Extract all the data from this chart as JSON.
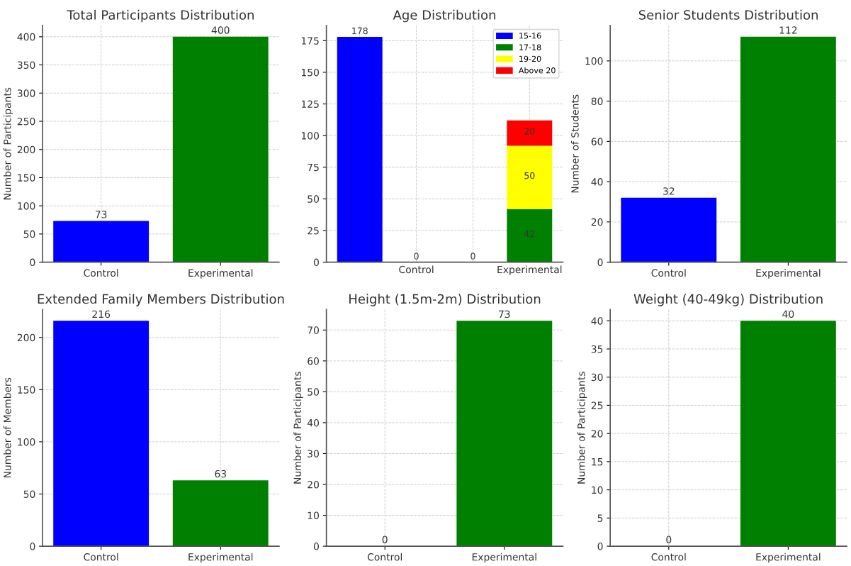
{
  "chart_data": [
    {
      "type": "bar",
      "title": "Total Participants Distribution",
      "ylabel": "Number of Participants",
      "categories": [
        "Control",
        "Experimental"
      ],
      "values": [
        73,
        400
      ],
      "colors": [
        "#0000ff",
        "#008000"
      ],
      "ylim": [
        0,
        420
      ],
      "yticks": [
        0,
        50,
        100,
        150,
        200,
        250,
        300,
        350,
        400
      ],
      "grid": true,
      "data_labels": true
    },
    {
      "type": "bar",
      "title": "Age Distribution",
      "categories": [
        null,
        "Control",
        null,
        "Experimental"
      ],
      "stacked": true,
      "series": [
        {
          "name": "15-16",
          "color": "#0000ff",
          "values": [
            178,
            null,
            0,
            null
          ]
        },
        {
          "name": "17-18",
          "color": "#008000",
          "values": [
            null,
            0,
            null,
            42
          ]
        },
        {
          "name": "19-20",
          "color": "#ffff00",
          "values": [
            null,
            null,
            null,
            50
          ]
        },
        {
          "name": "Above 20",
          "color": "#ff0000",
          "values": [
            null,
            null,
            null,
            20
          ]
        }
      ],
      "ylim": [
        0,
        187
      ],
      "yticks": [
        0,
        25,
        50,
        75,
        100,
        125,
        150,
        175
      ],
      "grid": true,
      "legend": "top right",
      "data_labels": true
    },
    {
      "type": "bar",
      "title": "Senior Students Distribution",
      "ylabel": "Number of Students",
      "categories": [
        "Control",
        "Experimental"
      ],
      "values": [
        32,
        112
      ],
      "colors": [
        "#0000ff",
        "#008000"
      ],
      "ylim": [
        0,
        117.6
      ],
      "yticks": [
        0,
        20,
        40,
        60,
        80,
        100
      ],
      "grid": true,
      "data_labels": true
    },
    {
      "type": "bar",
      "title": "Extended Family Members Distribution",
      "ylabel": "Number of Members",
      "categories": [
        "Control",
        "Experimental"
      ],
      "values": [
        216,
        63
      ],
      "colors": [
        "#0000ff",
        "#008000"
      ],
      "ylim": [
        0,
        226.8
      ],
      "yticks": [
        0,
        50,
        100,
        150,
        200
      ],
      "grid": true,
      "data_labels": true
    },
    {
      "type": "bar",
      "title": "Height (1.5m-2m) Distribution",
      "ylabel": "Number of Participants",
      "categories": [
        "Control",
        "Experimental"
      ],
      "values": [
        0,
        73
      ],
      "colors": [
        "#0000ff",
        "#008000"
      ],
      "ylim": [
        0,
        76.65
      ],
      "yticks": [
        0,
        10,
        20,
        30,
        40,
        50,
        60,
        70
      ],
      "grid": true,
      "data_labels": true
    },
    {
      "type": "bar",
      "title": "Weight (40-49kg) Distribution",
      "ylabel": "Number of Participants",
      "categories": [
        "Control",
        "Experimental"
      ],
      "values": [
        0,
        40
      ],
      "colors": [
        "#0000ff",
        "#008000"
      ],
      "ylim": [
        0,
        42
      ],
      "yticks": [
        0,
        5,
        10,
        15,
        20,
        25,
        30,
        35,
        40
      ],
      "grid": true,
      "data_labels": true
    }
  ]
}
